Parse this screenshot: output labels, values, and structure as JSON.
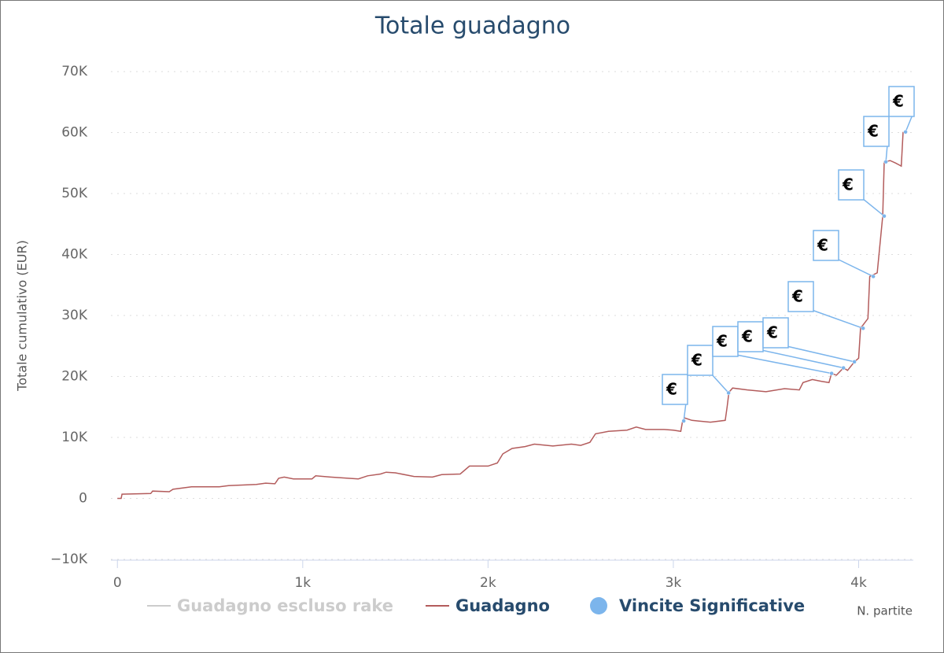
{
  "chart_data": {
    "type": "line",
    "title": "Totale guadagno",
    "y_label": "Totale cumulativo (EUR)",
    "x_label": "N. partite",
    "xlim": [
      -35,
      4295
    ],
    "xticks": [
      0,
      {
        "value": 1000,
        "label": "1k"
      },
      {
        "value": 2000,
        "label": "2k"
      },
      {
        "value": 3000,
        "label": "3k"
      },
      {
        "value": 4000,
        "label": "4k"
      }
    ],
    "ylim": [
      -10000,
      70000
    ],
    "yticks": [
      {
        "value": -10000,
        "label": "−10K"
      },
      0,
      {
        "value": 10000,
        "label": "10K"
      },
      {
        "value": 20000,
        "label": "20K"
      },
      {
        "value": 30000,
        "label": "30K"
      },
      {
        "value": 40000,
        "label": "40K"
      },
      {
        "value": 50000,
        "label": "50K"
      },
      {
        "value": 60000,
        "label": "60K"
      },
      {
        "value": 70000,
        "label": "70K"
      }
    ],
    "grid": true,
    "series": [
      {
        "name": "Guadagno escluso rake",
        "color": "#cccccc",
        "visible": false
      },
      {
        "name": "Guadagno",
        "color": "#b35c5c",
        "x": [
          0,
          20,
          25,
          180,
          190,
          280,
          300,
          400,
          550,
          600,
          750,
          800,
          850,
          870,
          900,
          950,
          1050,
          1070,
          1150,
          1300,
          1350,
          1420,
          1450,
          1500,
          1600,
          1700,
          1750,
          1850,
          1900,
          2000,
          2050,
          2080,
          2130,
          2200,
          2250,
          2350,
          2450,
          2500,
          2550,
          2580,
          2650,
          2750,
          2800,
          2850,
          2950,
          3000,
          3040,
          3050,
          3060,
          3100,
          3200,
          3280,
          3290,
          3300,
          3320,
          3400,
          3500,
          3600,
          3680,
          3700,
          3750,
          3800,
          3840,
          3854,
          3880,
          3918,
          3940,
          3977,
          4000,
          4010,
          4050,
          4060,
          4100,
          4130,
          4138,
          4170,
          4200,
          4230,
          4240
        ],
        "values": [
          0,
          0,
          700,
          800,
          1200,
          1100,
          1500,
          1900,
          1900,
          2100,
          2300,
          2500,
          2400,
          3300,
          3500,
          3200,
          3200,
          3700,
          3500,
          3200,
          3700,
          4000,
          4300,
          4200,
          3600,
          3500,
          3900,
          4000,
          5300,
          5300,
          5800,
          7300,
          8200,
          8500,
          8900,
          8600,
          8900,
          8700,
          9200,
          10600,
          11000,
          11200,
          11700,
          11300,
          11300,
          11200,
          11000,
          12700,
          13200,
          12800,
          12500,
          12800,
          15000,
          17400,
          18100,
          17800,
          17500,
          18000,
          17800,
          19000,
          19500,
          19200,
          19000,
          20500,
          20200,
          21400,
          21000,
          22400,
          23000,
          27900,
          29500,
          36400,
          37000,
          46300,
          55200,
          55400,
          55000,
          54500,
          60100
        ]
      },
      {
        "name": "Vincite Significative",
        "color": "#7cb5ec",
        "type": "scatter",
        "x": [
          3056,
          3298,
          3854,
          3918,
          3977,
          4024,
          4079,
          4138,
          4147,
          4253
        ],
        "values": [
          12700,
          17300,
          20500,
          21400,
          22400,
          27900,
          36400,
          46300,
          55200,
          60100
        ],
        "labels": [
          "€",
          "€",
          "€",
          "€",
          "€",
          "€",
          "€",
          "€",
          "€",
          "€"
        ]
      }
    ]
  }
}
